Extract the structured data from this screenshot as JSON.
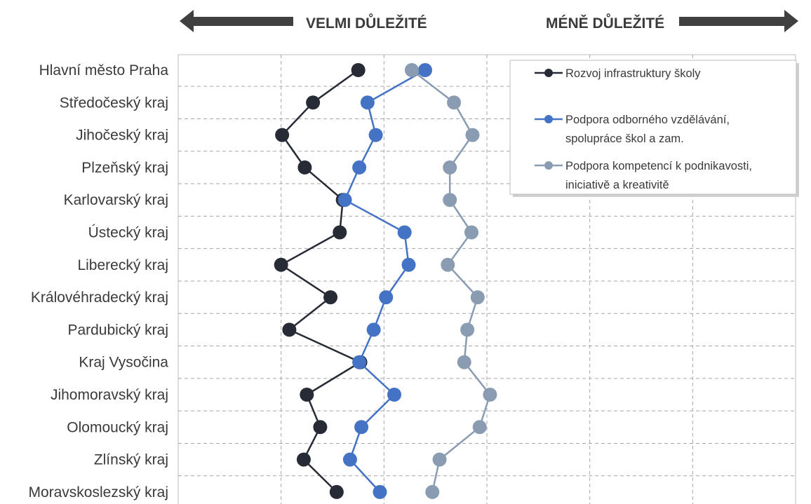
{
  "chart_data": {
    "type": "line",
    "orientation": "horizontal",
    "header": {
      "left_label": "VELMI DŮLEŽITÉ",
      "right_label": "MÉNĚ DŮLEŽITÉ"
    },
    "categories": [
      "Hlavní město Praha",
      "Středočeský kraj",
      "Jihočeský kraj",
      "Plzeňský kraj",
      "Karlovarský kraj",
      "Ústecký kraj",
      "Liberecký kraj",
      "Královéhradecký kraj",
      "Pardubický kraj",
      "Kraj Vysočina",
      "Jihomoravský kraj",
      "Olomoucký kraj",
      "Zlínský kraj",
      "Moravskoslezský kraj"
    ],
    "xlim": [
      0,
      6
    ],
    "grid": true,
    "legend": "top-right",
    "series": [
      {
        "name": "Rozvoj infrastruktury školy",
        "color": "#262b35",
        "values": [
          1.75,
          1.31,
          1.01,
          1.23,
          1.6,
          1.57,
          1.0,
          1.48,
          1.08,
          1.77,
          1.25,
          1.38,
          1.22,
          1.54
        ]
      },
      {
        "name": "Podpora odborného vzdělávání, spolupráce škol a zam.",
        "legend_lines": [
          "Podpora odborného vzdělávání,",
          "spolupráce škol a zam."
        ],
        "color": "#4472c4",
        "values": [
          2.4,
          1.84,
          1.92,
          1.76,
          1.62,
          2.2,
          2.24,
          2.02,
          1.9,
          1.76,
          2.1,
          1.78,
          1.67,
          1.96
        ]
      },
      {
        "name": "Podpora kompetencí k podnikavosti, iniciativě a kreativitě",
        "legend_lines": [
          "Podpora kompetencí k podnikavosti,",
          "iniciativě a kreativitě"
        ],
        "color": "#8a9cb2",
        "values": [
          2.27,
          2.68,
          2.86,
          2.64,
          2.64,
          2.85,
          2.62,
          2.91,
          2.81,
          2.78,
          3.03,
          2.93,
          2.54,
          2.47
        ]
      }
    ]
  }
}
